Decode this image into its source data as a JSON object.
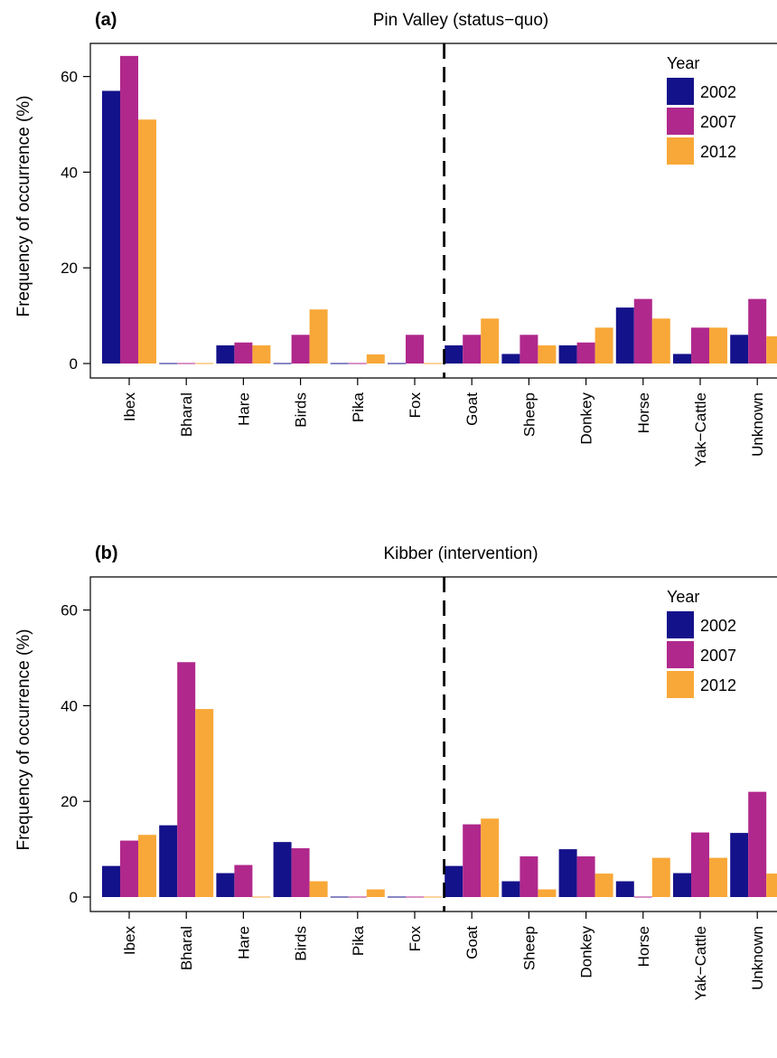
{
  "chart_data": [
    {
      "type": "bar",
      "panel_letter": "(a)",
      "title": "Pin Valley (status−quo)",
      "xlabel": "",
      "ylabel": "Frequency of occurrence (%)",
      "ylim": [
        0,
        70
      ],
      "yticks": [
        "0",
        "20",
        "40",
        "60"
      ],
      "categories": [
        "Ibex",
        "Bharal",
        "Hare",
        "Birds",
        "Pika",
        "Fox",
        "Goat",
        "Sheep",
        "Donkey",
        "Horse",
        "Yak−Cattle",
        "Unknown"
      ],
      "divider_after_category": "Fox",
      "legend": {
        "title": "Year",
        "position": "top-right"
      },
      "series": [
        {
          "name": "2002",
          "color": "#14128a",
          "values": [
            57,
            0,
            3.8,
            0,
            0,
            0,
            3.8,
            2,
            3.8,
            11.7,
            2,
            6
          ]
        },
        {
          "name": "2007",
          "color": "#b0288c",
          "values": [
            64.3,
            0,
            4.4,
            6,
            0,
            6,
            6,
            6,
            4.4,
            13.5,
            7.5,
            13.5
          ]
        },
        {
          "name": "2012",
          "color": "#f8a838",
          "values": [
            51,
            0,
            3.8,
            11.3,
            1.9,
            0,
            9.4,
            3.8,
            7.5,
            9.4,
            7.5,
            5.7
          ]
        }
      ]
    },
    {
      "type": "bar",
      "panel_letter": "(b)",
      "title": "Kibber (intervention)",
      "xlabel": "",
      "ylabel": "Frequency of occurrence (%)",
      "ylim": [
        0,
        70
      ],
      "yticks": [
        "0",
        "20",
        "40",
        "60"
      ],
      "categories": [
        "Ibex",
        "Bharal",
        "Hare",
        "Birds",
        "Pika",
        "Fox",
        "Goat",
        "Sheep",
        "Donkey",
        "Horse",
        "Yak−Cattle",
        "Unknown"
      ],
      "divider_after_category": "Fox",
      "legend": {
        "title": "Year",
        "position": "top-right"
      },
      "series": [
        {
          "name": "2002",
          "color": "#14128a",
          "values": [
            6.5,
            15,
            5,
            11.5,
            0,
            0,
            6.5,
            3.3,
            10,
            3.3,
            5,
            13.4
          ]
        },
        {
          "name": "2007",
          "color": "#b0288c",
          "values": [
            11.8,
            49.1,
            6.7,
            10.2,
            0,
            0,
            15.2,
            8.5,
            8.5,
            0,
            13.5,
            22
          ]
        },
        {
          "name": "2012",
          "color": "#f8a838",
          "values": [
            13,
            39.3,
            0,
            3.3,
            1.6,
            0,
            16.4,
            1.6,
            4.9,
            8.2,
            8.2,
            4.9
          ]
        }
      ]
    }
  ]
}
